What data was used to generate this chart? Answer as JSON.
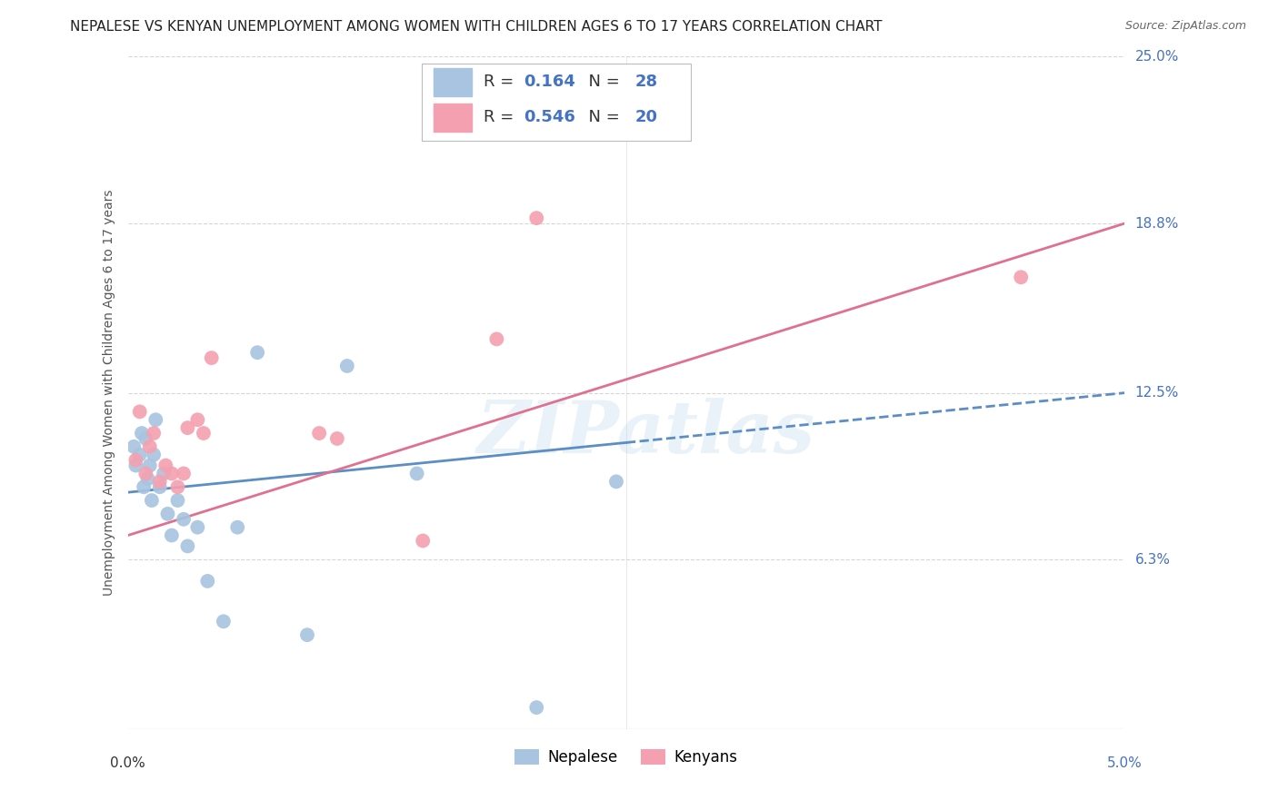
{
  "title": "NEPALESE VS KENYAN UNEMPLOYMENT AMONG WOMEN WITH CHILDREN AGES 6 TO 17 YEARS CORRELATION CHART",
  "source": "Source: ZipAtlas.com",
  "ylabel": "Unemployment Among Women with Children Ages 6 to 17 years",
  "xmin": 0.0,
  "xmax": 5.0,
  "ymin": 0.0,
  "ymax": 25.0,
  "background_color": "#ffffff",
  "watermark": "ZIPatlas",
  "nepalese_R": "0.164",
  "nepalese_N": "28",
  "kenyan_R": "0.546",
  "kenyan_N": "20",
  "nepalese_color": "#a8c4e0",
  "kenyan_color": "#f4a0b0",
  "nepalese_x": [
    0.03,
    0.04,
    0.06,
    0.07,
    0.08,
    0.09,
    0.1,
    0.11,
    0.12,
    0.13,
    0.14,
    0.16,
    0.18,
    0.2,
    0.22,
    0.25,
    0.28,
    0.3,
    0.35,
    0.4,
    0.48,
    0.55,
    0.65,
    0.9,
    1.1,
    1.45,
    2.05,
    2.45
  ],
  "nepalese_y": [
    10.5,
    9.8,
    10.2,
    11.0,
    9.0,
    10.8,
    9.3,
    9.8,
    8.5,
    10.2,
    11.5,
    9.0,
    9.5,
    8.0,
    7.2,
    8.5,
    7.8,
    6.8,
    7.5,
    5.5,
    4.0,
    7.5,
    14.0,
    3.5,
    13.5,
    9.5,
    0.8,
    9.2
  ],
  "kenyan_x": [
    0.04,
    0.06,
    0.09,
    0.11,
    0.13,
    0.16,
    0.19,
    0.22,
    0.25,
    0.28,
    0.3,
    0.35,
    0.38,
    0.42,
    0.96,
    1.05,
    1.48,
    1.85,
    2.05,
    4.48
  ],
  "kenyan_y": [
    10.0,
    11.8,
    9.5,
    10.5,
    11.0,
    9.2,
    9.8,
    9.5,
    9.0,
    9.5,
    11.2,
    11.5,
    11.0,
    13.8,
    11.0,
    10.8,
    7.0,
    14.5,
    19.0,
    16.8
  ],
  "nepalese_line_x0": 0.0,
  "nepalese_line_y0": 8.8,
  "nepalese_line_x1": 5.0,
  "nepalese_line_y1": 12.5,
  "nepalese_solid_end_x": 2.5,
  "kenyan_line_x0": 0.0,
  "kenyan_line_y0": 7.2,
  "kenyan_line_x1": 5.0,
  "kenyan_line_y1": 18.8,
  "line_color_nepalese": "#5b8ec4",
  "line_color_kenyan": "#e07090",
  "grid_color": "#cccccc",
  "ytick_vals": [
    6.3,
    12.5,
    18.8,
    25.0
  ],
  "ytick_labels": [
    "6.3%",
    "12.5%",
    "18.8%",
    "25.0%"
  ],
  "ytick_color": "#4472c4",
  "title_fontsize": 11,
  "source_fontsize": 9,
  "axis_label_fontsize": 10,
  "tick_fontsize": 11
}
